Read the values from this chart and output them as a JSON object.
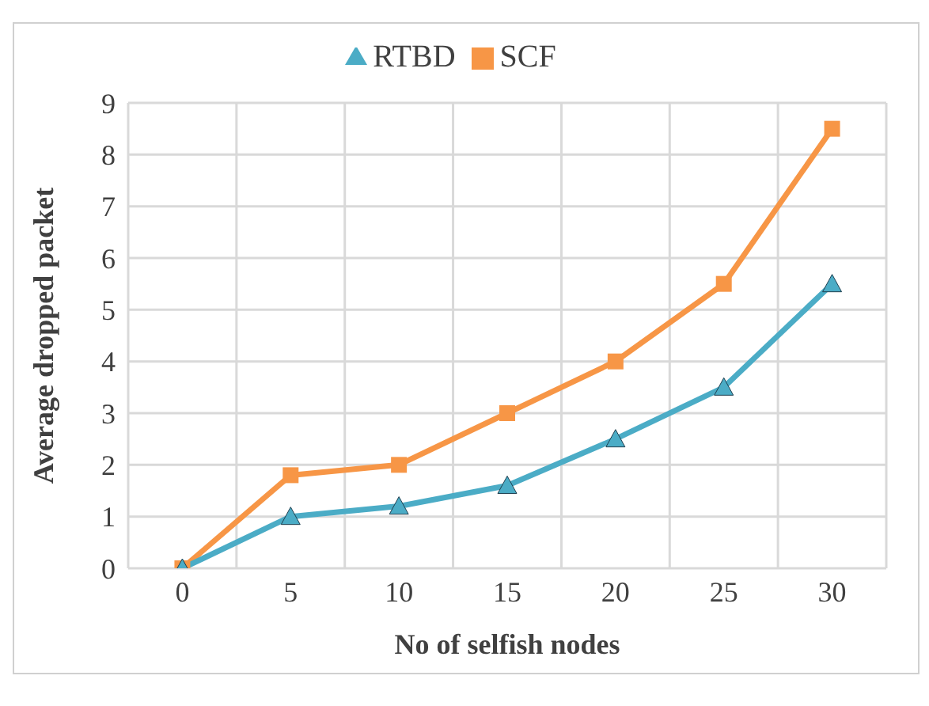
{
  "chart_data": {
    "type": "line",
    "xlabel": "No of selfish nodes",
    "ylabel": "Average dropped packet",
    "categories": [
      "0",
      "5",
      "10",
      "15",
      "20",
      "25",
      "30"
    ],
    "series": [
      {
        "name": "SCF",
        "color": "#f79646",
        "marker": "square",
        "values": [
          0,
          1.8,
          2.0,
          3.0,
          4.0,
          5.5,
          8.5
        ]
      },
      {
        "name": "RTBD",
        "color": "#4bacc6",
        "marker": "triangle",
        "values": [
          0,
          1.0,
          1.2,
          1.6,
          2.5,
          3.5,
          5.5
        ]
      }
    ],
    "ylim": [
      0,
      9
    ],
    "yticks": [
      0,
      1,
      2,
      3,
      4,
      5,
      6,
      7,
      8,
      9
    ],
    "grid": true,
    "legend": "top"
  }
}
